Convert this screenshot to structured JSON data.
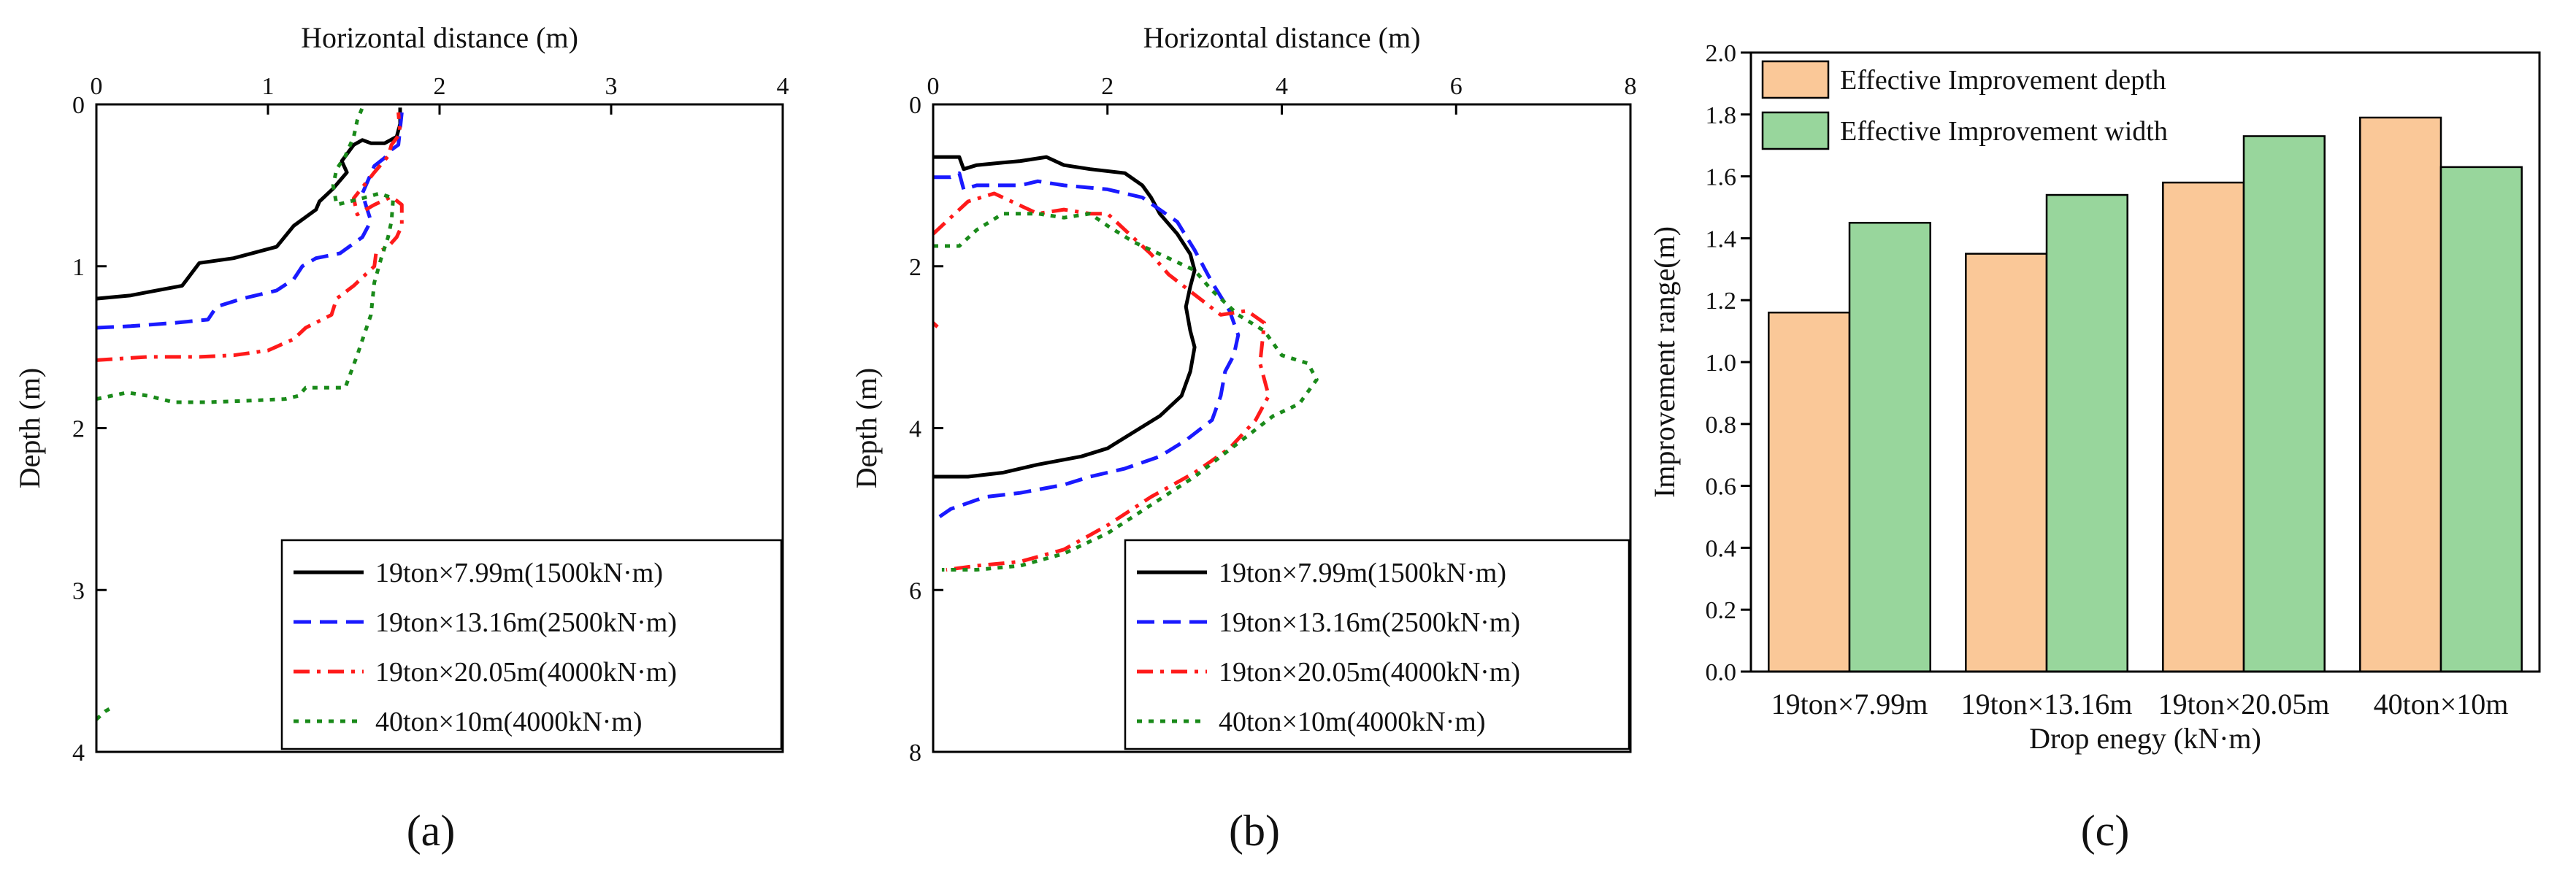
{
  "chart_data": [
    {
      "type": "line",
      "panel_label": "(a)",
      "xlabel": "Horizontal distance (m)",
      "ylabel": "Depth (m)",
      "xlim": [
        0,
        4
      ],
      "ylim": [
        0,
        4
      ],
      "x_ticks": [
        0,
        1,
        2,
        3,
        4
      ],
      "y_ticks": [
        0,
        1,
        2,
        3,
        4
      ],
      "x_axis_position": "top",
      "y_axis_inverted": true,
      "grid": false,
      "legend_position": "bottom-right",
      "series": [
        {
          "name": "19ton×7.99m(1500kN·m)",
          "color": "#000000",
          "dash": "solid",
          "points": [
            [
              0,
              1.2
            ],
            [
              0.2,
              1.18
            ],
            [
              0.3,
              1.16
            ],
            [
              0.5,
              1.12
            ],
            [
              0.55,
              1.05
            ],
            [
              0.6,
              0.98
            ],
            [
              0.8,
              0.95
            ],
            [
              1.05,
              0.88
            ],
            [
              1.15,
              0.75
            ],
            [
              1.28,
              0.65
            ],
            [
              1.3,
              0.6
            ],
            [
              1.38,
              0.52
            ],
            [
              1.46,
              0.42
            ],
            [
              1.43,
              0.35
            ],
            [
              1.5,
              0.25
            ],
            [
              1.55,
              0.22
            ],
            [
              1.6,
              0.24
            ],
            [
              1.68,
              0.24
            ],
            [
              1.75,
              0.2
            ],
            [
              1.77,
              0.12
            ],
            [
              1.77,
              0.02
            ]
          ]
        },
        {
          "name": "19ton×13.16m(2500kN·m)",
          "color": "#1a1aff",
          "dash": "dash",
          "points": [
            [
              0,
              1.38
            ],
            [
              0.2,
              1.37
            ],
            [
              0.45,
              1.35
            ],
            [
              0.65,
              1.33
            ],
            [
              0.7,
              1.25
            ],
            [
              0.85,
              1.2
            ],
            [
              1.05,
              1.15
            ],
            [
              1.15,
              1.08
            ],
            [
              1.2,
              1.0
            ],
            [
              1.28,
              0.95
            ],
            [
              1.42,
              0.92
            ],
            [
              1.55,
              0.82
            ],
            [
              1.6,
              0.72
            ],
            [
              1.57,
              0.62
            ],
            [
              1.55,
              0.55
            ],
            [
              1.62,
              0.38
            ],
            [
              1.68,
              0.33
            ],
            [
              1.72,
              0.28
            ],
            [
              1.76,
              0.25
            ],
            [
              1.77,
              0.15
            ],
            [
              1.78,
              0.05
            ]
          ]
        },
        {
          "name": "19ton×20.05m(4000kN·m)",
          "color": "#ff1a1a",
          "dash": "dashdot",
          "points": [
            [
              0,
              1.58
            ],
            [
              0.3,
              1.56
            ],
            [
              0.6,
              1.56
            ],
            [
              0.8,
              1.55
            ],
            [
              1.0,
              1.52
            ],
            [
              1.15,
              1.45
            ],
            [
              1.22,
              1.38
            ],
            [
              1.37,
              1.3
            ],
            [
              1.4,
              1.2
            ],
            [
              1.5,
              1.12
            ],
            [
              1.57,
              1.05
            ],
            [
              1.62,
              1.0
            ],
            [
              1.63,
              0.92
            ],
            [
              1.7,
              0.88
            ],
            [
              1.75,
              0.82
            ],
            [
              1.78,
              0.75
            ],
            [
              1.78,
              0.62
            ],
            [
              1.72,
              0.57
            ],
            [
              1.62,
              0.62
            ],
            [
              1.52,
              0.68
            ],
            [
              1.5,
              0.58
            ],
            [
              1.62,
              0.42
            ],
            [
              1.7,
              0.32
            ],
            [
              1.72,
              0.25
            ],
            [
              1.77,
              0.18
            ],
            [
              1.76,
              0.05
            ]
          ]
        },
        {
          "name": "40ton×10m(4000kN·m)",
          "color": "#1a8a1a",
          "dash": "dot",
          "points": [
            [
              0,
              1.82
            ],
            [
              0.18,
              1.78
            ],
            [
              0.3,
              1.8
            ],
            [
              0.45,
              1.84
            ],
            [
              0.65,
              1.84
            ],
            [
              0.9,
              1.83
            ],
            [
              1.1,
              1.82
            ],
            [
              1.18,
              1.8
            ],
            [
              1.22,
              1.75
            ],
            [
              1.45,
              1.75
            ],
            [
              1.52,
              1.55
            ],
            [
              1.6,
              1.3
            ],
            [
              1.62,
              1.1
            ],
            [
              1.66,
              0.95
            ],
            [
              1.7,
              0.82
            ],
            [
              1.72,
              0.72
            ],
            [
              1.73,
              0.58
            ],
            [
              1.65,
              0.55
            ],
            [
              1.55,
              0.58
            ],
            [
              1.4,
              0.62
            ],
            [
              1.38,
              0.5
            ],
            [
              1.4,
              0.4
            ],
            [
              1.45,
              0.32
            ],
            [
              1.5,
              0.2
            ],
            [
              1.52,
              0.1
            ],
            [
              1.55,
              0.02
            ]
          ]
        },
        {
          "name": "",
          "color": "#1a8a1a",
          "dash": "dot",
          "points": [
            [
              0,
              3.8
            ],
            [
              0.05,
              3.75
            ],
            [
              0.1,
              3.72
            ]
          ]
        }
      ]
    },
    {
      "type": "line",
      "panel_label": "(b)",
      "xlabel": "Horizontal distance (m)",
      "ylabel": "Depth (m)",
      "xlim": [
        0,
        8
      ],
      "ylim": [
        0,
        8
      ],
      "x_ticks": [
        0,
        2,
        4,
        6,
        8
      ],
      "y_ticks": [
        0,
        2,
        4,
        6,
        8
      ],
      "x_axis_position": "top",
      "y_axis_inverted": true,
      "grid": false,
      "legend_position": "bottom-right",
      "series": [
        {
          "name": "19ton×7.99m(1500kN·m)",
          "color": "#000000",
          "dash": "solid",
          "points": [
            [
              0,
              0.65
            ],
            [
              0.3,
              0.65
            ],
            [
              0.35,
              0.8
            ],
            [
              0.5,
              0.75
            ],
            [
              0.8,
              0.72
            ],
            [
              1.0,
              0.7
            ],
            [
              1.3,
              0.65
            ],
            [
              1.5,
              0.75
            ],
            [
              1.8,
              0.8
            ],
            [
              2.2,
              0.85
            ],
            [
              2.4,
              1.0
            ],
            [
              2.5,
              1.15
            ],
            [
              2.6,
              1.35
            ],
            [
              2.8,
              1.6
            ],
            [
              2.95,
              1.85
            ],
            [
              3.0,
              2.05
            ],
            [
              2.95,
              2.25
            ],
            [
              2.9,
              2.5
            ],
            [
              2.95,
              2.8
            ],
            [
              3.0,
              3.0
            ],
            [
              2.95,
              3.3
            ],
            [
              2.85,
              3.6
            ],
            [
              2.6,
              3.85
            ],
            [
              2.3,
              4.05
            ],
            [
              2.0,
              4.25
            ],
            [
              1.7,
              4.35
            ],
            [
              1.2,
              4.45
            ],
            [
              0.8,
              4.55
            ],
            [
              0.4,
              4.6
            ],
            [
              0,
              4.6
            ]
          ]
        },
        {
          "name": "19ton×13.16m(2500kN·m)",
          "color": "#1a1aff",
          "dash": "dash",
          "points": [
            [
              0,
              0.9
            ],
            [
              0.2,
              0.9
            ],
            [
              0.3,
              0.85
            ],
            [
              0.35,
              1.05
            ],
            [
              0.5,
              1.0
            ],
            [
              1.0,
              1.0
            ],
            [
              1.2,
              0.95
            ],
            [
              1.5,
              1.0
            ],
            [
              2.0,
              1.05
            ],
            [
              2.4,
              1.15
            ],
            [
              2.8,
              1.45
            ],
            [
              3.0,
              1.8
            ],
            [
              3.2,
              2.2
            ],
            [
              3.4,
              2.55
            ],
            [
              3.5,
              2.85
            ],
            [
              3.45,
              3.1
            ],
            [
              3.35,
              3.3
            ],
            [
              3.3,
              3.6
            ],
            [
              3.2,
              3.9
            ],
            [
              2.9,
              4.15
            ],
            [
              2.6,
              4.35
            ],
            [
              2.2,
              4.5
            ],
            [
              1.8,
              4.6
            ],
            [
              1.5,
              4.7
            ],
            [
              1.0,
              4.8
            ],
            [
              0.6,
              4.85
            ],
            [
              0.2,
              5.0
            ],
            [
              0,
              5.15
            ]
          ]
        },
        {
          "name": "19ton×20.05m(4000kN·m)",
          "color": "#ff1a1a",
          "dash": "dashdot",
          "points": [
            [
              0,
              1.6
            ],
            [
              0.2,
              1.4
            ],
            [
              0.4,
              1.2
            ],
            [
              0.7,
              1.1
            ],
            [
              1.0,
              1.25
            ],
            [
              1.2,
              1.35
            ],
            [
              1.5,
              1.3
            ],
            [
              1.8,
              1.35
            ],
            [
              2.0,
              1.35
            ],
            [
              2.2,
              1.55
            ],
            [
              2.5,
              1.85
            ],
            [
              2.7,
              2.1
            ],
            [
              3.0,
              2.35
            ],
            [
              3.3,
              2.6
            ],
            [
              3.6,
              2.55
            ],
            [
              3.8,
              2.7
            ],
            [
              3.75,
              3.2
            ],
            [
              3.85,
              3.6
            ],
            [
              3.7,
              3.9
            ],
            [
              3.4,
              4.25
            ],
            [
              3.0,
              4.55
            ],
            [
              2.5,
              4.85
            ],
            [
              2.0,
              5.2
            ],
            [
              1.5,
              5.5
            ],
            [
              1.0,
              5.65
            ],
            [
              0.5,
              5.7
            ],
            [
              0.15,
              5.75
            ]
          ]
        },
        {
          "name": "40ton×10m(4000kN·m)",
          "color": "#1a8a1a",
          "dash": "dot",
          "points": [
            [
              0,
              1.75
            ],
            [
              0.3,
              1.75
            ],
            [
              0.5,
              1.55
            ],
            [
              0.8,
              1.35
            ],
            [
              1.2,
              1.35
            ],
            [
              1.5,
              1.4
            ],
            [
              1.8,
              1.35
            ],
            [
              2.0,
              1.5
            ],
            [
              2.3,
              1.7
            ],
            [
              2.6,
              1.85
            ],
            [
              3.0,
              2.05
            ],
            [
              3.2,
              2.3
            ],
            [
              3.5,
              2.6
            ],
            [
              3.8,
              2.8
            ],
            [
              4.0,
              3.1
            ],
            [
              4.3,
              3.2
            ],
            [
              4.4,
              3.4
            ],
            [
              4.2,
              3.7
            ],
            [
              3.9,
              3.85
            ],
            [
              3.6,
              4.1
            ],
            [
              3.3,
              4.35
            ],
            [
              3.0,
              4.6
            ],
            [
              2.5,
              4.95
            ],
            [
              2.0,
              5.3
            ],
            [
              1.5,
              5.55
            ],
            [
              1.0,
              5.7
            ],
            [
              0.5,
              5.75
            ],
            [
              0.1,
              5.75
            ]
          ]
        },
        {
          "name": "",
          "color": "#ff1a1a",
          "dash": "dashdot",
          "points": [
            [
              0,
              2.7
            ],
            [
              0.05,
              2.75
            ]
          ]
        }
      ]
    },
    {
      "type": "bar",
      "panel_label": "(c)",
      "xlabel": "Drop enegy (kN·m)",
      "ylabel": "Improvement range(m)",
      "ylim": [
        0,
        2.0
      ],
      "y_ticks": [
        "0.0",
        "0.2",
        "0.4",
        "0.6",
        "0.8",
        "1.0",
        "1.2",
        "1.4",
        "1.6",
        "1.8",
        "2.0"
      ],
      "grid": false,
      "legend_position": "top-left",
      "categories": [
        "19ton×7.99m",
        "19ton×13.16m",
        "19ton×20.05m",
        "40ton×10m"
      ],
      "series": [
        {
          "name": "Effective Improvement depth",
          "color": "#fac898",
          "values": [
            1.16,
            1.35,
            1.58,
            1.79
          ]
        },
        {
          "name": "Effective Improvement width",
          "color": "#98d69c",
          "values": [
            1.45,
            1.54,
            1.73,
            1.63
          ]
        }
      ]
    }
  ]
}
